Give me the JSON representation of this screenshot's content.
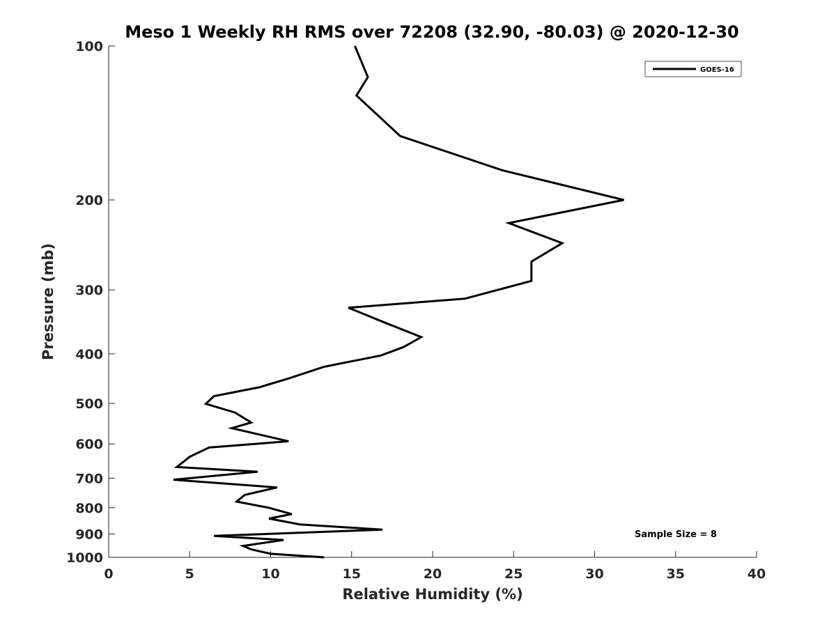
{
  "chart_data": {
    "type": "line",
    "title": "Meso 1 Weekly RH RMS over 72208 (32.90, -80.03) @ 2020-12-30",
    "xlabel": "Relative Humidity (%)",
    "ylabel": "Pressure (mb)",
    "xlim": [
      0,
      40
    ],
    "ylim": [
      1000,
      100
    ],
    "y_scale": "log",
    "y_reversed": true,
    "grid": false,
    "legend_position": "top-right",
    "x_ticks": [
      0,
      5,
      10,
      15,
      20,
      25,
      30,
      35,
      40
    ],
    "y_ticks": [
      100,
      200,
      300,
      400,
      500,
      600,
      700,
      800,
      900,
      1000
    ],
    "series": [
      {
        "name": "GOES-16",
        "color": "#000000",
        "x": [
          15.2,
          16.0,
          15.3,
          18.0,
          24.3,
          31.8,
          24.7,
          28.0,
          26.1,
          26.1,
          22.0,
          14.8,
          16.9,
          19.3,
          18.2,
          16.8,
          13.3,
          11.1,
          9.3,
          6.5,
          6.0,
          7.8,
          8.8,
          7.6,
          11.1,
          6.2,
          5.0,
          4.2,
          9.2,
          4.0,
          10.4,
          8.4,
          7.9,
          9.9,
          11.3,
          9.9,
          11.8,
          16.9,
          6.5,
          10.8,
          8.3,
          8.8,
          10.0,
          13.3
        ],
        "y": [
          100,
          115,
          125,
          150,
          175,
          200,
          222,
          243,
          264,
          288,
          312,
          325,
          346,
          371,
          388,
          403,
          424,
          447,
          465,
          484,
          501,
          521,
          545,
          559,
          593,
          610,
          636,
          666,
          680,
          705,
          730,
          755,
          778,
          800,
          823,
          840,
          862,
          883,
          908,
          925,
          950,
          965,
          984,
          1000
        ]
      }
    ],
    "annotations": [
      {
        "text": "Sample Size = 8",
        "position": "bottom-right"
      }
    ]
  }
}
